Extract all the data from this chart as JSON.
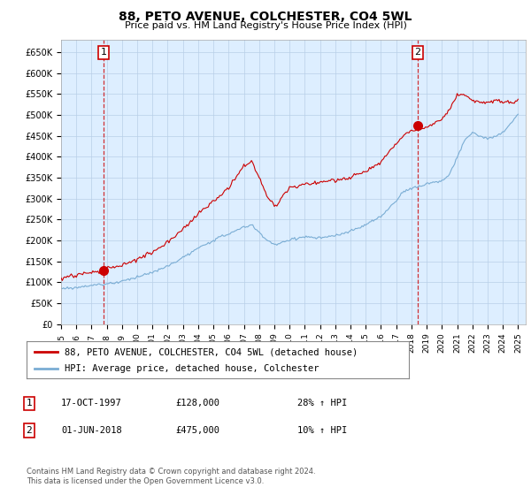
{
  "title": "88, PETO AVENUE, COLCHESTER, CO4 5WL",
  "subtitle": "Price paid vs. HM Land Registry's House Price Index (HPI)",
  "xlim_start": 1995.0,
  "xlim_end": 2025.5,
  "ylim_min": 0,
  "ylim_max": 680000,
  "yticks": [
    0,
    50000,
    100000,
    150000,
    200000,
    250000,
    300000,
    350000,
    400000,
    450000,
    500000,
    550000,
    600000,
    650000
  ],
  "ytick_labels": [
    "£0",
    "£50K",
    "£100K",
    "£150K",
    "£200K",
    "£250K",
    "£300K",
    "£350K",
    "£400K",
    "£450K",
    "£500K",
    "£550K",
    "£600K",
    "£650K"
  ],
  "xticks": [
    1995,
    1996,
    1997,
    1998,
    1999,
    2000,
    2001,
    2002,
    2003,
    2004,
    2005,
    2006,
    2007,
    2008,
    2009,
    2010,
    2011,
    2012,
    2013,
    2014,
    2015,
    2016,
    2017,
    2018,
    2019,
    2020,
    2021,
    2022,
    2023,
    2024,
    2025
  ],
  "sale1_x": 1997.79,
  "sale1_y": 128000,
  "sale1_label": "1",
  "sale1_date": "17-OCT-1997",
  "sale1_price": "£128,000",
  "sale1_hpi": "28% ↑ HPI",
  "sale2_x": 2018.42,
  "sale2_y": 475000,
  "sale2_label": "2",
  "sale2_date": "01-JUN-2018",
  "sale2_price": "£475,000",
  "sale2_hpi": "10% ↑ HPI",
  "legend_line1": "88, PETO AVENUE, COLCHESTER, CO4 5WL (detached house)",
  "legend_line2": "HPI: Average price, detached house, Colchester",
  "footer": "Contains HM Land Registry data © Crown copyright and database right 2024.\nThis data is licensed under the Open Government Licence v3.0.",
  "line_color_red": "#cc0000",
  "line_color_blue": "#7aadd4",
  "bg_chart": "#ddeeff",
  "background_color": "#ffffff",
  "grid_color": "#b8cfe8"
}
